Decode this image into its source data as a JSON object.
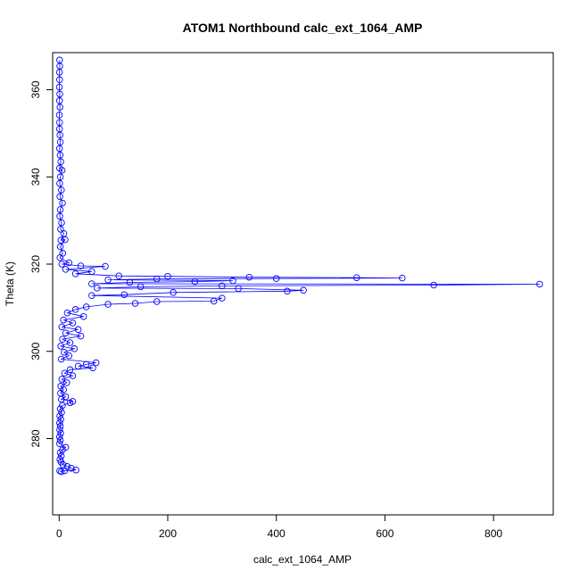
{
  "chart_data": {
    "type": "scatter",
    "title": "ATOM1 Northbound calc_ext_1064_AMP",
    "xlabel": "calc_ext_1064_AMP",
    "ylabel": "Theta (K)",
    "xlim": [
      -12,
      910
    ],
    "ylim": [
      262.5,
      368.5
    ],
    "xticks": [
      0,
      200,
      400,
      600,
      800
    ],
    "yticks": [
      280,
      300,
      320,
      340,
      360
    ],
    "grid": false,
    "legend": "none",
    "colors": {
      "series": "#0000ff",
      "axes": "#000000"
    },
    "series": [
      {
        "marker": "open-circle",
        "connect": true,
        "points": [
          [
            0.8,
            366.8
          ],
          [
            1.2,
            365.4
          ],
          [
            0.5,
            364.0
          ],
          [
            0.9,
            362.3
          ],
          [
            0.3,
            360.6
          ],
          [
            1.1,
            359.0
          ],
          [
            0.6,
            357.5
          ],
          [
            1.4,
            356.0
          ],
          [
            0.4,
            354.2
          ],
          [
            0.9,
            352.5
          ],
          [
            0.7,
            351.0
          ],
          [
            1.5,
            349.6
          ],
          [
            2.2,
            348.0
          ],
          [
            0.6,
            346.5
          ],
          [
            1.8,
            345.0
          ],
          [
            3.0,
            343.5
          ],
          [
            0.9,
            342.0
          ],
          [
            5.5,
            341.5
          ],
          [
            2.2,
            340.0
          ],
          [
            1.0,
            338.5
          ],
          [
            4.1,
            337.0
          ],
          [
            1.3,
            335.5
          ],
          [
            6.0,
            334.0
          ],
          [
            2.0,
            332.5
          ],
          [
            1.1,
            331.0
          ],
          [
            4.5,
            329.5
          ],
          [
            2.6,
            328.0
          ],
          [
            8.5,
            327.0
          ],
          [
            3.3,
            325.5
          ],
          [
            11.0,
            325.6
          ],
          [
            2.1,
            324.0
          ],
          [
            6.5,
            322.5
          ],
          [
            1.4,
            321.5
          ],
          [
            18.0,
            320.3
          ],
          [
            5.0,
            320.0
          ],
          [
            40.0,
            319.6
          ],
          [
            85.0,
            319.5
          ],
          [
            12.0,
            318.8
          ],
          [
            60.0,
            318.3
          ],
          [
            30.0,
            317.8
          ],
          [
            110.0,
            317.3
          ],
          [
            200.0,
            317.2
          ],
          [
            350.0,
            317.0
          ],
          [
            548.0,
            316.9
          ],
          [
            632.0,
            316.8
          ],
          [
            400.0,
            316.7
          ],
          [
            180.0,
            316.6
          ],
          [
            90.0,
            316.4
          ],
          [
            320.0,
            316.2
          ],
          [
            250.0,
            316.0
          ],
          [
            130.0,
            315.8
          ],
          [
            60.0,
            315.5
          ],
          [
            885.0,
            315.4
          ],
          [
            690.0,
            315.2
          ],
          [
            300.0,
            315.0
          ],
          [
            150.0,
            314.8
          ],
          [
            70.0,
            314.5
          ],
          [
            330.0,
            314.4
          ],
          [
            450.0,
            314.0
          ],
          [
            420.0,
            313.8
          ],
          [
            210.0,
            313.5
          ],
          [
            120.0,
            313.0
          ],
          [
            60.0,
            312.8
          ],
          [
            300.0,
            312.2
          ],
          [
            285.0,
            311.5
          ],
          [
            180.0,
            311.4
          ],
          [
            140.0,
            311.0
          ],
          [
            90.0,
            310.8
          ],
          [
            50.0,
            310.2
          ],
          [
            30.0,
            309.6
          ],
          [
            15.0,
            308.8
          ],
          [
            45.0,
            308.0
          ],
          [
            8.0,
            307.2
          ],
          [
            25.0,
            306.5
          ],
          [
            5.0,
            305.6
          ],
          [
            35.0,
            305.0
          ],
          [
            12.0,
            304.2
          ],
          [
            40.0,
            303.5
          ],
          [
            6.0,
            302.8
          ],
          [
            20.0,
            302.0
          ],
          [
            3.0,
            301.2
          ],
          [
            28.0,
            300.6
          ],
          [
            9.0,
            299.8
          ],
          [
            18.0,
            299.0
          ],
          [
            4.0,
            298.2
          ],
          [
            68.0,
            297.4
          ],
          [
            50.0,
            297.0
          ],
          [
            35.0,
            296.6
          ],
          [
            62.0,
            296.2
          ],
          [
            20.0,
            295.8
          ],
          [
            10.0,
            295.0
          ],
          [
            25.0,
            294.4
          ],
          [
            5.0,
            293.6
          ],
          [
            14.0,
            292.8
          ],
          [
            3.0,
            292.0
          ],
          [
            8.0,
            291.2
          ],
          [
            2.5,
            290.4
          ],
          [
            12.0,
            289.6
          ],
          [
            4.0,
            289.0
          ],
          [
            25.0,
            288.5
          ],
          [
            20.0,
            288.2
          ],
          [
            6.0,
            287.6
          ],
          [
            2.0,
            286.8
          ],
          [
            4.5,
            286.0
          ],
          [
            1.2,
            285.2
          ],
          [
            3.0,
            284.4
          ],
          [
            0.8,
            283.6
          ],
          [
            2.2,
            282.8
          ],
          [
            1.0,
            282.0
          ],
          [
            2.8,
            281.2
          ],
          [
            0.6,
            280.4
          ],
          [
            1.9,
            279.6
          ],
          [
            0.9,
            278.8
          ],
          [
            12.0,
            278.0
          ],
          [
            6.0,
            277.4
          ],
          [
            2.0,
            276.8
          ],
          [
            4.0,
            276.0
          ],
          [
            1.5,
            275.2
          ],
          [
            3.5,
            274.6
          ],
          [
            7.0,
            274.0
          ],
          [
            15.0,
            273.6
          ],
          [
            22.0,
            273.2
          ],
          [
            31.0,
            272.8
          ],
          [
            10.0,
            272.6
          ],
          [
            4.0,
            272.4
          ],
          [
            1.0,
            272.6
          ]
        ]
      }
    ]
  }
}
